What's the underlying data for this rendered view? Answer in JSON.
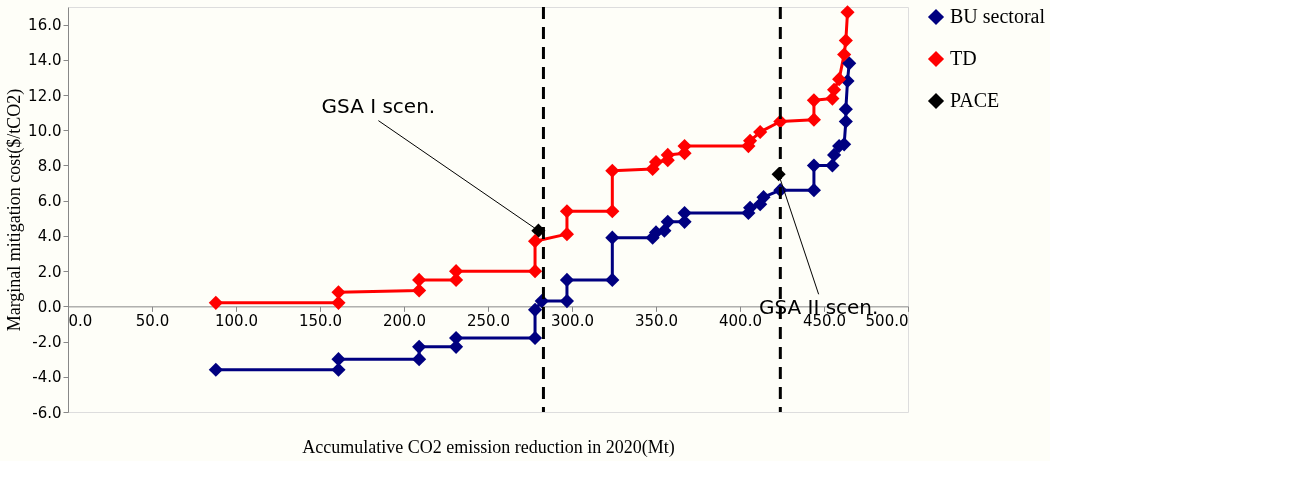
{
  "chart_data": {
    "type": "line",
    "xlabel": "Accumulative CO2 emission reduction in 2020(Mt)",
    "ylabel": "Marginal mitigation cost($/tCO2)",
    "xlim": [
      0,
      500
    ],
    "ylim": [
      -6,
      17
    ],
    "xticks": [
      {
        "value": 0,
        "label": "0.0"
      },
      {
        "value": 50,
        "label": "50.0"
      },
      {
        "value": 100,
        "label": "100.0"
      },
      {
        "value": 150,
        "label": "150.0"
      },
      {
        "value": 200,
        "label": "200.0"
      },
      {
        "value": 250,
        "label": "250.0"
      },
      {
        "value": 300,
        "label": "300.0"
      },
      {
        "value": 350,
        "label": "350.0"
      },
      {
        "value": 400,
        "label": "400.0"
      },
      {
        "value": 450,
        "label": "450.0"
      },
      {
        "value": 500,
        "label": "500.0"
      }
    ],
    "yticks": [
      {
        "value": -6,
        "label": "-6.0"
      },
      {
        "value": -4,
        "label": "-4.0"
      },
      {
        "value": -2,
        "label": "-2.0"
      },
      {
        "value": 0,
        "label": "0.0"
      },
      {
        "value": 2,
        "label": "2.0"
      },
      {
        "value": 4,
        "label": "4.0"
      },
      {
        "value": 6,
        "label": "6.0"
      },
      {
        "value": 8,
        "label": "8.0"
      },
      {
        "value": 10,
        "label": "10.0"
      },
      {
        "value": 12,
        "label": "12.0"
      },
      {
        "value": 14,
        "label": "14.0"
      },
      {
        "value": 16,
        "label": "16.0"
      }
    ],
    "marker": "diamond",
    "legend": "right",
    "grid": false,
    "series": [
      {
        "name": "BU sectoral",
        "color": "#000080",
        "x": [
          88,
          161,
          161,
          209,
          209,
          231,
          231,
          278,
          278,
          282,
          297,
          297,
          324,
          324,
          348,
          350,
          355,
          357,
          367,
          367,
          405,
          406,
          412,
          414,
          424,
          444,
          444,
          455,
          456,
          459,
          462,
          463,
          463,
          464,
          465
        ],
        "values": [
          -3.6,
          -3.6,
          -3.0,
          -3.0,
          -2.3,
          -2.3,
          -1.8,
          -1.8,
          -0.2,
          0.3,
          0.3,
          1.5,
          1.5,
          3.9,
          3.9,
          4.2,
          4.3,
          4.8,
          4.8,
          5.3,
          5.3,
          5.6,
          5.8,
          6.2,
          6.6,
          6.6,
          8.0,
          8.0,
          8.6,
          9.1,
          9.2,
          10.5,
          11.2,
          12.8,
          13.8
        ]
      },
      {
        "name": "TD",
        "color": "#ff0000",
        "x": [
          88,
          161,
          161,
          209,
          209,
          231,
          231,
          278,
          278,
          297,
          297,
          324,
          324,
          348,
          350,
          357,
          357,
          367,
          367,
          405,
          406,
          412,
          424,
          444,
          444,
          455,
          456,
          459,
          462,
          463,
          464
        ],
        "values": [
          0.2,
          0.2,
          0.8,
          0.9,
          1.5,
          1.5,
          2.0,
          2.0,
          3.7,
          4.1,
          5.4,
          5.4,
          7.7,
          7.8,
          8.2,
          8.3,
          8.6,
          8.7,
          9.1,
          9.1,
          9.4,
          9.9,
          10.5,
          10.6,
          11.7,
          11.8,
          12.3,
          12.9,
          14.3,
          15.1,
          16.7
        ]
      },
      {
        "name": "PACE",
        "color": "#000000",
        "type": "scatter",
        "x": [
          280,
          423
        ],
        "values": [
          4.3,
          7.5
        ]
      }
    ],
    "ref_lines": [
      {
        "axis": "x",
        "value": 283,
        "color": "#000000",
        "line_style": "dashed"
      },
      {
        "axis": "x",
        "value": 424,
        "color": "#000000",
        "line_style": "dashed"
      }
    ],
    "annotations": [
      {
        "text": "GSA I scen.",
        "x": 280,
        "y": 4.3
      },
      {
        "text": "GSA II scen.",
        "x": 423,
        "y": 7.5
      }
    ]
  }
}
